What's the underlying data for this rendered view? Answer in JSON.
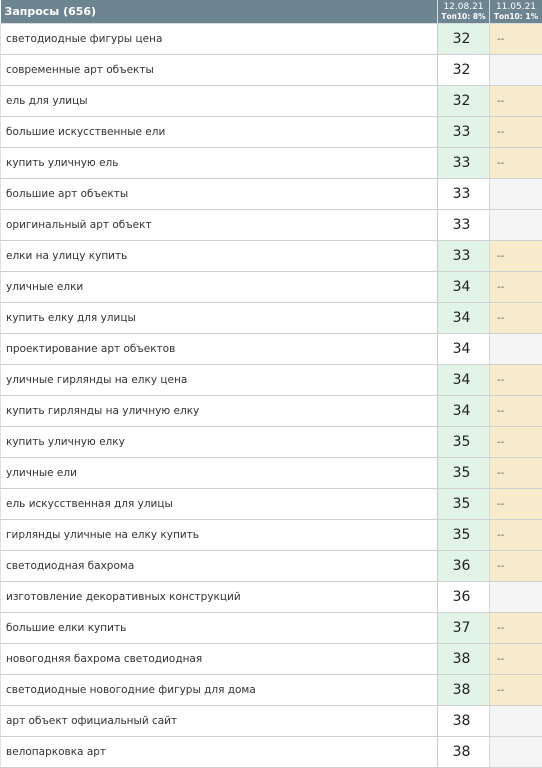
{
  "header": {
    "queries_label": "Запросы (656)",
    "col1_date": "12.08.21",
    "col1_sub": "Топ10: 8%",
    "col2_date": "11.05.21",
    "col2_sub": "Топ10: 1%"
  },
  "colors": {
    "header_bg": "#6d8491",
    "position_highlight": "#e2f4e8",
    "old_highlight": "#f7ebcd",
    "old_empty": "#f5f5f5"
  },
  "rows": [
    {
      "query": "светодиодные фигуры цена",
      "pos": "32",
      "old": "--"
    },
    {
      "query": "современные арт объекты",
      "pos": "32",
      "old": ""
    },
    {
      "query": "ель для улицы",
      "pos": "32",
      "old": "--"
    },
    {
      "query": "большие искусственные ели",
      "pos": "33",
      "old": "--"
    },
    {
      "query": "купить уличную ель",
      "pos": "33",
      "old": "--"
    },
    {
      "query": "большие арт объекты",
      "pos": "33",
      "old": ""
    },
    {
      "query": "оригинальный арт объект",
      "pos": "33",
      "old": ""
    },
    {
      "query": "елки на улицу купить",
      "pos": "33",
      "old": "--"
    },
    {
      "query": "уличные елки",
      "pos": "34",
      "old": "--"
    },
    {
      "query": "купить елку для улицы",
      "pos": "34",
      "old": "--"
    },
    {
      "query": "проектирование арт объектов",
      "pos": "34",
      "old": ""
    },
    {
      "query": "уличные гирлянды на елку цена",
      "pos": "34",
      "old": "--"
    },
    {
      "query": "купить гирлянды на уличную елку",
      "pos": "34",
      "old": "--"
    },
    {
      "query": "купить уличную елку",
      "pos": "35",
      "old": "--"
    },
    {
      "query": "уличные ели",
      "pos": "35",
      "old": "--"
    },
    {
      "query": "ель искусственная для улицы",
      "pos": "35",
      "old": "--"
    },
    {
      "query": "гирлянды уличные на елку купить",
      "pos": "35",
      "old": "--"
    },
    {
      "query": "светодиодная бахрома",
      "pos": "36",
      "old": "--"
    },
    {
      "query": "изготовление декоративных конструкций",
      "pos": "36",
      "old": ""
    },
    {
      "query": "большие елки купить",
      "pos": "37",
      "old": "--"
    },
    {
      "query": "новогодняя бахрома светодиодная",
      "pos": "38",
      "old": "--"
    },
    {
      "query": "светодиодные новогодние фигуры для дома",
      "pos": "38",
      "old": "--"
    },
    {
      "query": "арт объект официальный сайт",
      "pos": "38",
      "old": ""
    },
    {
      "query": "велопарковка арт",
      "pos": "38",
      "old": ""
    }
  ]
}
